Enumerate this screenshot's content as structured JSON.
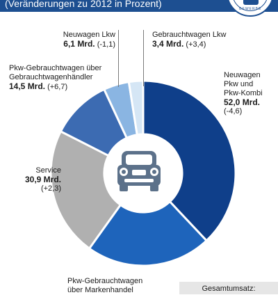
{
  "header": {
    "subtitle": "(Veränderungen zu 2012 in Prozent)"
  },
  "logo": {
    "text": "GEWERBE"
  },
  "chart_data": {
    "type": "pie",
    "subtitle": "(Veränderungen zu 2012 in Prozent)",
    "unit": "Mrd.",
    "slices": [
      {
        "name": "Neuwagen Pkw und Pkw-Kombi",
        "value": 52.0,
        "change": -4.6,
        "color": "#0f3f8a"
      },
      {
        "name": "Pkw-Gebrauchtwagen über Markenhandel",
        "value": null,
        "change": null,
        "color": "#1e64bb"
      },
      {
        "name": "Service",
        "value": 30.9,
        "change": 2.3,
        "color": "#b0b0b0"
      },
      {
        "name": "Pkw-Gebrauchtwagen über Gebrauchtwagenhändler",
        "value": 14.5,
        "change": 6.7,
        "color": "#3c6bb2"
      },
      {
        "name": "Neuwagen Lkw",
        "value": 6.1,
        "change": -1.1,
        "color": "#8ab5e2"
      },
      {
        "name": "Gebrauchtwagen Lkw",
        "value": 3.4,
        "change": 3.4,
        "color": "#d5e6f5"
      }
    ],
    "labels": {
      "neuwagen_lkw": {
        "name": "Neuwagen Lkw",
        "value": "6,1 Mrd.",
        "change": "(-1,1)"
      },
      "gebraucht_lkw": {
        "name": "Gebrauchtwagen Lkw",
        "value": "3,4 Mrd.",
        "change": "(+3,4)"
      },
      "pkw_gw_handler": {
        "name1": "Pkw-Gebrauchtwagen über",
        "name2": "Gebrauchtwagenhändler",
        "value": "14,5 Mrd.",
        "change": "(+6,7)"
      },
      "neuwagen_pkw": {
        "name1": "Neuwagen",
        "name2": "Pkw und",
        "name3": "Pkw-Kombi",
        "value": "52,0 Mrd.",
        "change": "(-4,6)"
      },
      "service": {
        "name": "Service",
        "value": "30,9 Mrd.",
        "change": "(+2,3)"
      },
      "pkw_gw_marken": {
        "name1": "Pkw-Gebrauchtwagen",
        "name2": "über Markenhandel"
      }
    },
    "total_label": "Gesamtumsatz:"
  }
}
